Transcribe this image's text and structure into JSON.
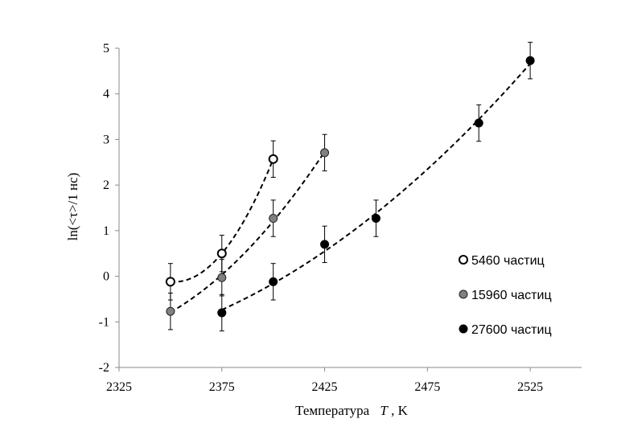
{
  "chart_data": {
    "type": "scatter",
    "xlabel_main": "Температура",
    "xlabel_var": "T",
    "xlabel_unit": ", K",
    "ylabel": "ln(<τ>/1 нс)",
    "xlim": [
      2325,
      2550
    ],
    "ylim": [
      -2,
      5
    ],
    "x_ticks": [
      2325,
      2375,
      2425,
      2475,
      2525
    ],
    "y_ticks": [
      -2,
      -1,
      0,
      1,
      2,
      3,
      4,
      5
    ],
    "legend_position": "right",
    "series": [
      {
        "name": "5460 частиц",
        "marker": "open-circle",
        "color": "#ffffff",
        "x": [
          2350,
          2375,
          2400
        ],
        "y": [
          -0.12,
          0.5,
          2.57
        ],
        "err": [
          0.4,
          0.4,
          0.4
        ]
      },
      {
        "name": "15960 частиц",
        "marker": "gray-circle",
        "color": "#808080",
        "x": [
          2350,
          2375,
          2400,
          2425
        ],
        "y": [
          -0.77,
          -0.03,
          1.27,
          2.71
        ],
        "err": [
          0.4,
          0.4,
          0.4,
          0.4
        ]
      },
      {
        "name": "27600 частиц",
        "marker": "filled-circle",
        "color": "#000000",
        "x": [
          2375,
          2400,
          2425,
          2450,
          2500,
          2525
        ],
        "y": [
          -0.8,
          -0.12,
          0.7,
          1.27,
          3.36,
          4.73
        ],
        "err": [
          0.4,
          0.4,
          0.4,
          0.4,
          0.4,
          0.4
        ]
      }
    ]
  }
}
